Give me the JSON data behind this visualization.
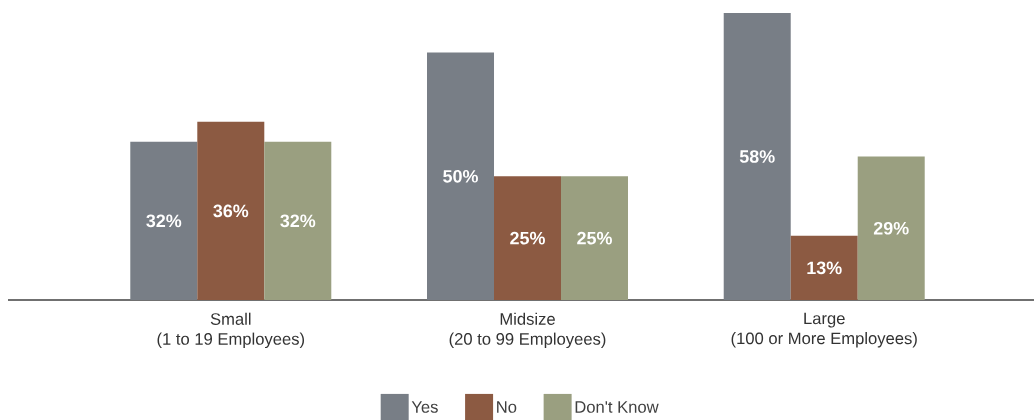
{
  "chart_data": {
    "type": "bar",
    "categories": [
      "Small\n(1 to 19 Employees)",
      "Midsize\n(20 to 99 Employees)",
      "Large\n(100 or More Employees)"
    ],
    "series": [
      {
        "name": "Yes",
        "color": "#787e86",
        "values": [
          32,
          50,
          58
        ],
        "value_labels": [
          "32%",
          "50%",
          "58%"
        ]
      },
      {
        "name": "No",
        "color": "#8c5a42",
        "values": [
          36,
          25,
          13
        ],
        "value_labels": [
          "36%",
          "25%",
          "13%"
        ]
      },
      {
        "name": "Don't Know",
        "color": "#9a9f80",
        "values": [
          32,
          25,
          29
        ],
        "value_labels": [
          "32%",
          "25%",
          "29%"
        ]
      }
    ],
    "legend": "bottom"
  }
}
